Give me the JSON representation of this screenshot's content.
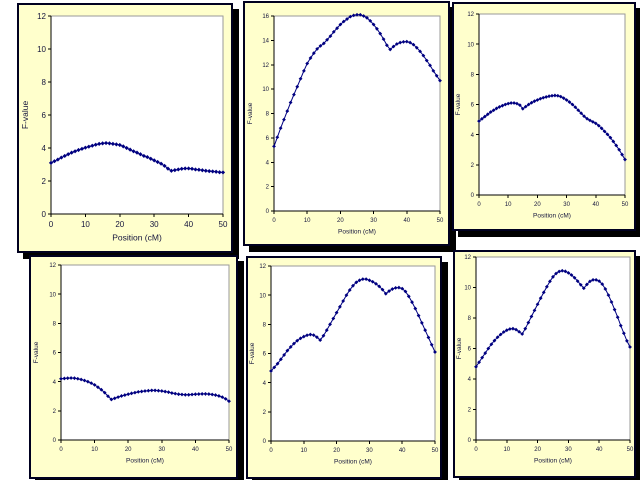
{
  "slide": {
    "background_top": "#00055c",
    "background_middle": "#0a1ed8",
    "background_bottom": "#000728",
    "panel_background": "#ffffcc",
    "panel_border": "#000020",
    "panel_shadow": "#000000",
    "plot_background": "#ffffff",
    "plot_border": "#9a9a9a",
    "axis_color": "#000000",
    "series_color": "#000080",
    "label_color": "#14143c"
  },
  "chart_data": [
    {
      "type": "line",
      "name": "chart-top-left",
      "title": "",
      "xlabel": "Position (cM)",
      "ylabel": "F-value",
      "xlim": [
        0,
        50
      ],
      "ylim": [
        0,
        12
      ],
      "xticks": [
        0,
        10,
        20,
        30,
        40,
        50
      ],
      "yticks": [
        0,
        2,
        4,
        6,
        8,
        10,
        12
      ],
      "x_step": 1,
      "marker": "diamond",
      "legend": "none",
      "grid": false,
      "values": [
        3.1,
        3.2,
        3.3,
        3.42,
        3.52,
        3.62,
        3.72,
        3.8,
        3.88,
        3.95,
        4.02,
        4.08,
        4.14,
        4.2,
        4.25,
        4.28,
        4.3,
        4.28,
        4.25,
        4.22,
        4.18,
        4.1,
        4.0,
        3.9,
        3.8,
        3.72,
        3.62,
        3.52,
        3.45,
        3.35,
        3.25,
        3.15,
        3.05,
        2.92,
        2.75,
        2.62,
        2.66,
        2.7,
        2.74,
        2.76,
        2.76,
        2.74,
        2.7,
        2.68,
        2.65,
        2.62,
        2.6,
        2.58,
        2.56,
        2.53,
        2.52
      ]
    },
    {
      "type": "line",
      "name": "chart-top-middle",
      "title": "",
      "xlabel": "Position (cM)",
      "ylabel": "F-value",
      "xlim": [
        0,
        50
      ],
      "ylim": [
        0,
        16
      ],
      "xticks": [
        0,
        10,
        20,
        30,
        40,
        50
      ],
      "yticks": [
        0,
        2,
        4,
        6,
        8,
        10,
        12,
        14,
        16
      ],
      "x_step": 1,
      "marker": "diamond",
      "legend": "none",
      "grid": false,
      "values": [
        5.3,
        6.05,
        6.8,
        7.5,
        8.2,
        8.9,
        9.55,
        10.2,
        10.85,
        11.5,
        12.1,
        12.55,
        12.95,
        13.3,
        13.55,
        13.75,
        14.05,
        14.35,
        14.7,
        15.0,
        15.3,
        15.55,
        15.75,
        15.95,
        16.05,
        16.1,
        16.1,
        16.0,
        15.85,
        15.6,
        15.3,
        14.95,
        14.55,
        14.1,
        13.6,
        13.25,
        13.5,
        13.7,
        13.82,
        13.88,
        13.9,
        13.82,
        13.65,
        13.4,
        13.1,
        12.75,
        12.35,
        11.95,
        11.5,
        11.1,
        10.7
      ]
    },
    {
      "type": "line",
      "name": "chart-top-right",
      "title": "",
      "xlabel": "Position (cM)",
      "ylabel": "F-value",
      "xlim": [
        0,
        50
      ],
      "ylim": [
        0,
        12
      ],
      "xticks": [
        0,
        10,
        20,
        30,
        40,
        50
      ],
      "yticks": [
        0,
        2,
        4,
        6,
        8,
        10,
        12
      ],
      "x_step": 1,
      "marker": "diamond",
      "legend": "none",
      "grid": false,
      "values": [
        4.9,
        5.05,
        5.2,
        5.35,
        5.5,
        5.62,
        5.74,
        5.84,
        5.92,
        6.0,
        6.06,
        6.1,
        6.1,
        6.06,
        5.96,
        5.72,
        5.86,
        6.0,
        6.12,
        6.22,
        6.3,
        6.38,
        6.45,
        6.5,
        6.55,
        6.58,
        6.6,
        6.58,
        6.52,
        6.42,
        6.3,
        6.16,
        6.0,
        5.82,
        5.62,
        5.42,
        5.22,
        5.06,
        4.95,
        4.85,
        4.75,
        4.6,
        4.42,
        4.22,
        4.02,
        3.8,
        3.55,
        3.28,
        3.0,
        2.68,
        2.35
      ]
    },
    {
      "type": "line",
      "name": "chart-bottom-left",
      "title": "",
      "xlabel": "Position (cM)",
      "ylabel": "F-value",
      "xlim": [
        0,
        50
      ],
      "ylim": [
        0,
        12
      ],
      "xticks": [
        0,
        10,
        20,
        30,
        40,
        50
      ],
      "yticks": [
        0,
        2,
        4,
        6,
        8,
        10,
        12
      ],
      "x_step": 1,
      "marker": "diamond",
      "legend": "none",
      "grid": false,
      "values": [
        4.2,
        4.22,
        4.24,
        4.25,
        4.24,
        4.2,
        4.15,
        4.08,
        4.0,
        3.9,
        3.78,
        3.62,
        3.45,
        3.25,
        3.0,
        2.78,
        2.86,
        2.94,
        3.02,
        3.08,
        3.14,
        3.2,
        3.25,
        3.3,
        3.33,
        3.36,
        3.38,
        3.4,
        3.4,
        3.38,
        3.36,
        3.32,
        3.28,
        3.22,
        3.18,
        3.14,
        3.12,
        3.1,
        3.1,
        3.12,
        3.14,
        3.15,
        3.16,
        3.16,
        3.15,
        3.12,
        3.08,
        3.02,
        2.94,
        2.82,
        2.66
      ]
    },
    {
      "type": "line",
      "name": "chart-bottom-middle",
      "title": "",
      "xlabel": "Position (cM)",
      "ylabel": "F-value",
      "xlim": [
        0,
        50
      ],
      "ylim": [
        0,
        12
      ],
      "xticks": [
        0,
        10,
        20,
        30,
        40,
        50
      ],
      "yticks": [
        0,
        2,
        4,
        6,
        8,
        10,
        12
      ],
      "x_step": 1,
      "marker": "diamond",
      "legend": "none",
      "grid": false,
      "values": [
        4.8,
        5.05,
        5.3,
        5.6,
        5.9,
        6.2,
        6.45,
        6.68,
        6.88,
        7.04,
        7.16,
        7.25,
        7.3,
        7.26,
        7.12,
        6.92,
        7.22,
        7.6,
        8.0,
        8.4,
        8.8,
        9.2,
        9.6,
        10.0,
        10.35,
        10.65,
        10.88,
        11.02,
        11.1,
        11.1,
        11.02,
        10.92,
        10.78,
        10.6,
        10.38,
        10.1,
        10.28,
        10.42,
        10.5,
        10.52,
        10.45,
        10.25,
        9.92,
        9.52,
        9.08,
        8.6,
        8.1,
        7.6,
        7.1,
        6.6,
        6.1
      ]
    },
    {
      "type": "line",
      "name": "chart-bottom-right",
      "title": "",
      "xlabel": "Position (cM)",
      "ylabel": "F-value",
      "xlim": [
        0,
        50
      ],
      "ylim": [
        0,
        12
      ],
      "xticks": [
        0,
        10,
        20,
        30,
        40,
        50
      ],
      "yticks": [
        0,
        2,
        4,
        6,
        8,
        10,
        12
      ],
      "x_step": 1,
      "marker": "diamond",
      "legend": "none",
      "grid": false,
      "values": [
        4.8,
        5.1,
        5.4,
        5.7,
        6.0,
        6.28,
        6.52,
        6.74,
        6.92,
        7.08,
        7.2,
        7.28,
        7.3,
        7.24,
        7.1,
        6.95,
        7.3,
        7.7,
        8.1,
        8.5,
        8.9,
        9.3,
        9.68,
        10.05,
        10.4,
        10.7,
        10.92,
        11.05,
        11.1,
        11.06,
        10.96,
        10.82,
        10.64,
        10.42,
        10.18,
        9.95,
        10.2,
        10.4,
        10.5,
        10.5,
        10.42,
        10.22,
        9.9,
        9.5,
        9.05,
        8.55,
        8.05,
        7.5,
        7.0,
        6.5,
        6.1
      ]
    }
  ]
}
